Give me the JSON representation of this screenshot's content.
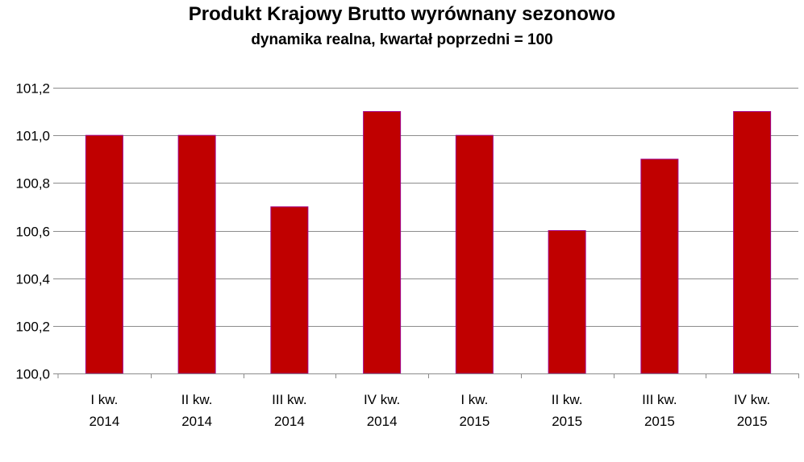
{
  "chart_data": {
    "type": "bar",
    "title": "Produkt Krajowy Brutto wyrównany sezonowo",
    "subtitle": "dynamika realna, kwartał poprzedni = 100",
    "categories": [
      [
        "I kw.",
        "2014"
      ],
      [
        "II kw.",
        "2014"
      ],
      [
        "III kw.",
        "2014"
      ],
      [
        "IV kw.",
        "2014"
      ],
      [
        "I kw.",
        "2015"
      ],
      [
        "II kw.",
        "2015"
      ],
      [
        "III kw.",
        "2015"
      ],
      [
        "IV kw.",
        "2015"
      ]
    ],
    "values": [
      101.0,
      101.0,
      100.7,
      101.1,
      101.0,
      100.6,
      100.9,
      101.1
    ],
    "ylim": [
      100.0,
      101.2
    ],
    "yticks": [
      "100,0",
      "100,2",
      "100,4",
      "100,6",
      "100,8",
      "101,0",
      "101,2"
    ],
    "ytick_values": [
      100.0,
      100.2,
      100.4,
      100.6,
      100.8,
      101.0,
      101.2
    ],
    "grid": true,
    "colors": {
      "bar": "#C00000",
      "bar_edge": "#A0008A",
      "grid": "#8C8C8C"
    }
  }
}
